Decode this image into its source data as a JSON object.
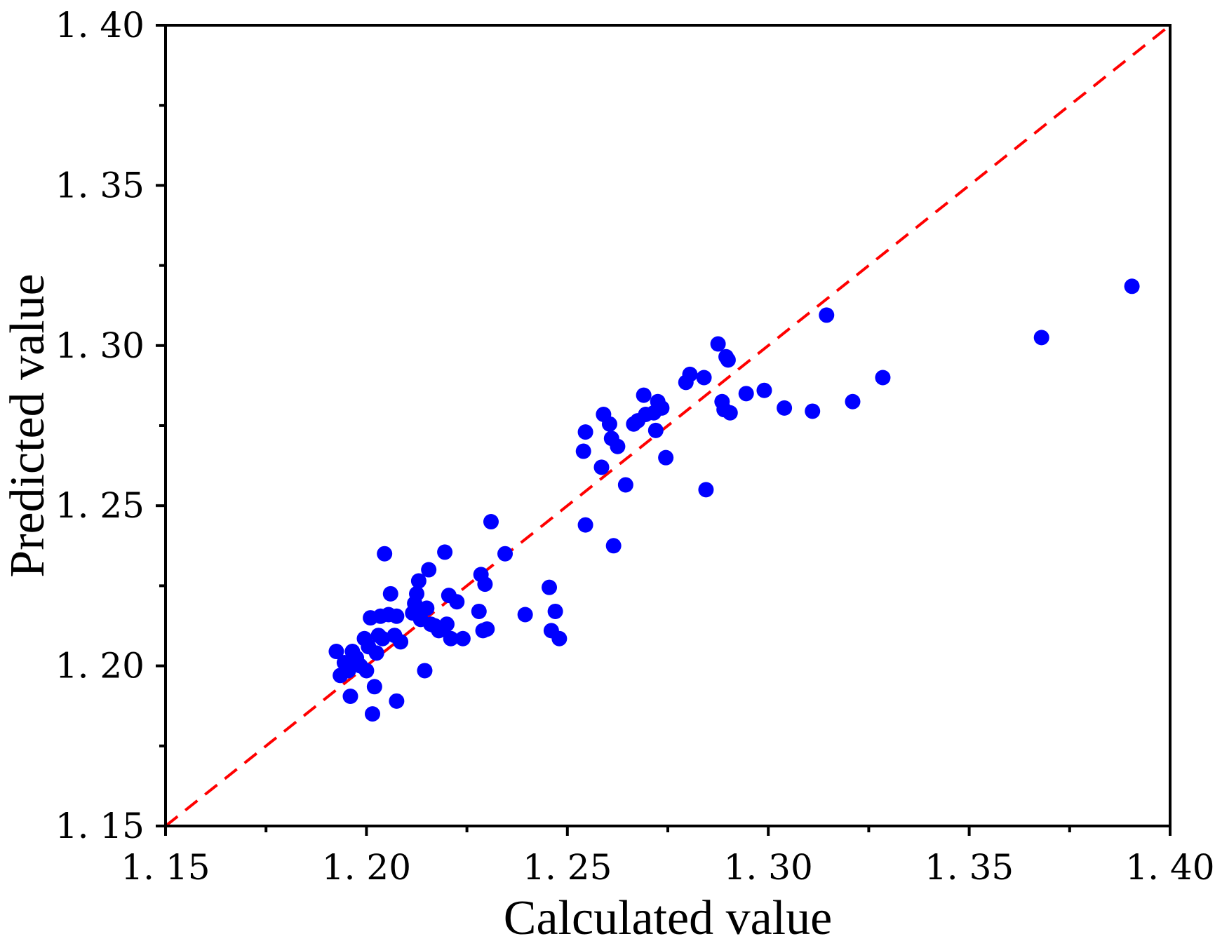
{
  "chart_data": {
    "type": "scatter",
    "xlabel": "Calculated value",
    "ylabel": "Predicted value",
    "xlim": [
      1.15,
      1.4
    ],
    "ylim": [
      1.15,
      1.4
    ],
    "xticks": [
      "1. 15",
      "1. 20",
      "1. 25",
      "1. 30",
      "1. 35",
      "1. 40"
    ],
    "yticks": [
      "1. 15",
      "1. 20",
      "1. 25",
      "1. 30",
      "1. 35",
      "1. 40"
    ],
    "xtick_values": [
      1.15,
      1.2,
      1.25,
      1.3,
      1.35,
      1.4
    ],
    "ytick_values": [
      1.15,
      1.2,
      1.25,
      1.3,
      1.35,
      1.4
    ],
    "reference_line": {
      "from": [
        1.15,
        1.15
      ],
      "to": [
        1.4,
        1.4
      ],
      "style": "dashed"
    },
    "colors": {
      "points": "#0000ff",
      "reference_line": "#ff0000",
      "axes": "#000000"
    },
    "series": [
      {
        "name": "data",
        "points": [
          [
            1.1925,
            1.2045
          ],
          [
            1.1935,
            1.197
          ],
          [
            1.1945,
            1.201
          ],
          [
            1.1955,
            1.1985
          ],
          [
            1.196,
            1.1905
          ],
          [
            1.1965,
            1.2045
          ],
          [
            1.1975,
            1.2025
          ],
          [
            1.1985,
            1.2
          ],
          [
            1.1995,
            1.2085
          ],
          [
            1.2,
            1.1985
          ],
          [
            1.2005,
            1.206
          ],
          [
            1.201,
            1.215
          ],
          [
            1.2015,
            1.185
          ],
          [
            1.202,
            1.1935
          ],
          [
            1.2025,
            1.204
          ],
          [
            1.203,
            1.2095
          ],
          [
            1.2035,
            1.2155
          ],
          [
            1.204,
            1.2085
          ],
          [
            1.2045,
            1.235
          ],
          [
            1.2055,
            1.216
          ],
          [
            1.206,
            1.2225
          ],
          [
            1.207,
            1.2095
          ],
          [
            1.2075,
            1.2155
          ],
          [
            1.2075,
            1.189
          ],
          [
            1.2085,
            1.2075
          ],
          [
            1.2115,
            1.2165
          ],
          [
            1.212,
            1.2195
          ],
          [
            1.2125,
            1.2225
          ],
          [
            1.213,
            1.2265
          ],
          [
            1.2135,
            1.2145
          ],
          [
            1.2145,
            1.1985
          ],
          [
            1.215,
            1.218
          ],
          [
            1.2155,
            1.23
          ],
          [
            1.216,
            1.213
          ],
          [
            1.217,
            1.2125
          ],
          [
            1.218,
            1.211
          ],
          [
            1.219,
            1.2115
          ],
          [
            1.2195,
            1.2355
          ],
          [
            1.22,
            1.213
          ],
          [
            1.2205,
            1.222
          ],
          [
            1.221,
            1.2085
          ],
          [
            1.2225,
            1.22
          ],
          [
            1.224,
            1.2085
          ],
          [
            1.228,
            1.217
          ],
          [
            1.2285,
            1.2285
          ],
          [
            1.229,
            1.211
          ],
          [
            1.2295,
            1.2255
          ],
          [
            1.23,
            1.2115
          ],
          [
            1.231,
            1.245
          ],
          [
            1.2345,
            1.235
          ],
          [
            1.2395,
            1.216
          ],
          [
            1.2455,
            1.2245
          ],
          [
            1.246,
            1.211
          ],
          [
            1.247,
            1.217
          ],
          [
            1.248,
            1.2085
          ],
          [
            1.254,
            1.267
          ],
          [
            1.2545,
            1.273
          ],
          [
            1.2545,
            1.244
          ],
          [
            1.2585,
            1.262
          ],
          [
            1.259,
            1.2785
          ],
          [
            1.2605,
            1.2755
          ],
          [
            1.261,
            1.271
          ],
          [
            1.2615,
            1.2375
          ],
          [
            1.2625,
            1.2685
          ],
          [
            1.2645,
            1.2565
          ],
          [
            1.2665,
            1.2755
          ],
          [
            1.2675,
            1.2765
          ],
          [
            1.269,
            1.2845
          ],
          [
            1.2695,
            1.2785
          ],
          [
            1.2715,
            1.279
          ],
          [
            1.272,
            1.2735
          ],
          [
            1.2725,
            1.2825
          ],
          [
            1.2735,
            1.2805
          ],
          [
            1.2745,
            1.265
          ],
          [
            1.2795,
            1.2885
          ],
          [
            1.2805,
            1.291
          ],
          [
            1.284,
            1.29
          ],
          [
            1.2845,
            1.255
          ],
          [
            1.2875,
            1.3005
          ],
          [
            1.2885,
            1.2825
          ],
          [
            1.289,
            1.28
          ],
          [
            1.2895,
            1.2965
          ],
          [
            1.29,
            1.2955
          ],
          [
            1.2905,
            1.279
          ],
          [
            1.2945,
            1.285
          ],
          [
            1.299,
            1.286
          ],
          [
            1.304,
            1.2805
          ],
          [
            1.311,
            1.2795
          ],
          [
            1.3145,
            1.3095
          ],
          [
            1.321,
            1.2825
          ],
          [
            1.3285,
            1.29
          ],
          [
            1.368,
            1.3025
          ],
          [
            1.3905,
            1.3185
          ]
        ]
      }
    ]
  }
}
